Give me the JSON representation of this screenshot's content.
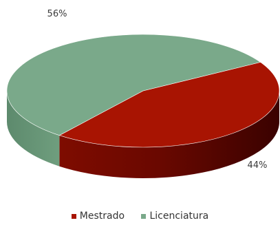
{
  "chart_data": {
    "type": "pie",
    "style": "3d",
    "categories": [
      "Mestrado",
      "Licenciatura"
    ],
    "values": [
      44,
      56
    ],
    "data_labels": [
      "44%",
      "56%"
    ],
    "colors": [
      "#a81402",
      "#7aa98a"
    ],
    "legend": "bottom",
    "title": ""
  }
}
